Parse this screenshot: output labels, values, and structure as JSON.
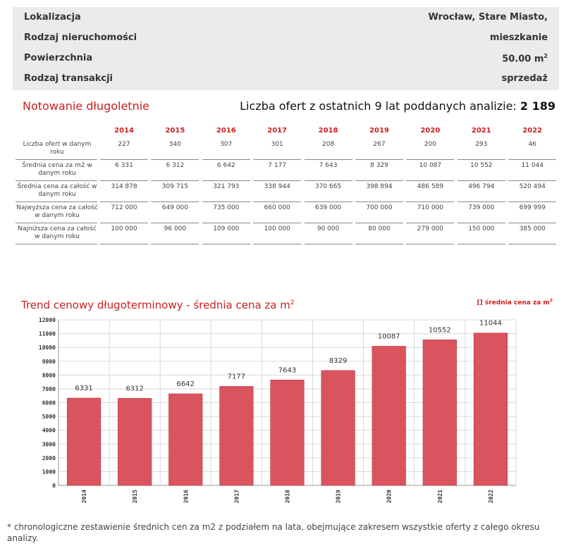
{
  "property": {
    "rows": [
      {
        "label": "Lokalizacja",
        "value": "Wrocław, Stare Miasto,"
      },
      {
        "label": "Rodzaj nieruchomości",
        "value": "mieszkanie"
      },
      {
        "label": "Powierzchnia",
        "value": "50.00 m",
        "sup": "2"
      },
      {
        "label": "Rodzaj transakcji",
        "value": "sprzedaż"
      }
    ]
  },
  "section": {
    "title": "Notowanie długoletnie",
    "offers_text": "Liczba ofert z ostatnich 9 lat poddanych analizie: ",
    "offers_count": "2 189"
  },
  "table": {
    "years": [
      "2014",
      "2015",
      "2016",
      "2017",
      "2018",
      "2019",
      "2020",
      "2021",
      "2022"
    ],
    "rows": [
      {
        "label": "Liczba ofert w danym roku",
        "values": [
          "227",
          "340",
          "307",
          "301",
          "208",
          "267",
          "200",
          "293",
          "46"
        ]
      },
      {
        "label": "Średnia cena za m2 w danym roku",
        "values": [
          "6 331",
          "6 312",
          "6 642",
          "7 177",
          "7 643",
          "8 329",
          "10 087",
          "10 552",
          "11 044"
        ]
      },
      {
        "label": "Średnia cena za całość w danym roku",
        "values": [
          "314 878",
          "309 715",
          "321 793",
          "338 944",
          "370 665",
          "398 894",
          "486 589",
          "496 794",
          "520 494"
        ]
      },
      {
        "label": "Najwyższa cena za całość w danym roku",
        "values": [
          "712 000",
          "649 000",
          "735 000",
          "660 000",
          "639 000",
          "700 000",
          "710 000",
          "739 000",
          "699 999"
        ]
      },
      {
        "label": "Najniższa cena za całość w danym roku",
        "values": [
          "100 000",
          "96 000",
          "109 000",
          "100 000",
          "90 000",
          "80 000",
          "279 000",
          "150 000",
          "385 000"
        ]
      }
    ]
  },
  "chart_title": "Trend cenowy długoterminowy - średnia cena za m",
  "chart_title_sup": "2",
  "legend_label": "[] średnia cena za m",
  "legend_sup": "2",
  "chart_data": {
    "type": "bar",
    "categories": [
      "2014",
      "2015",
      "2016",
      "2017",
      "2018",
      "2019",
      "2020",
      "2021",
      "2022"
    ],
    "values": [
      6331,
      6312,
      6642,
      7177,
      7643,
      8329,
      10087,
      10552,
      11044
    ],
    "ylim": [
      0,
      12000
    ],
    "yticks": [
      0,
      1000,
      2000,
      3000,
      4000,
      5000,
      6000,
      7000,
      8000,
      9000,
      10000,
      11000,
      12000
    ],
    "series": [
      {
        "name": "średnia cena za m2",
        "values": [
          6331,
          6312,
          6642,
          7177,
          7643,
          8329,
          10087,
          10552,
          11044
        ]
      }
    ],
    "grid": true,
    "legend_position": "top-right",
    "bar_color": "#d9545e"
  },
  "footnote": "* chronologiczne zestawienie średnich cen za m2 z podziałem na lata, obejmujące zakresem wszystkie oferty z całego okresu analizy."
}
